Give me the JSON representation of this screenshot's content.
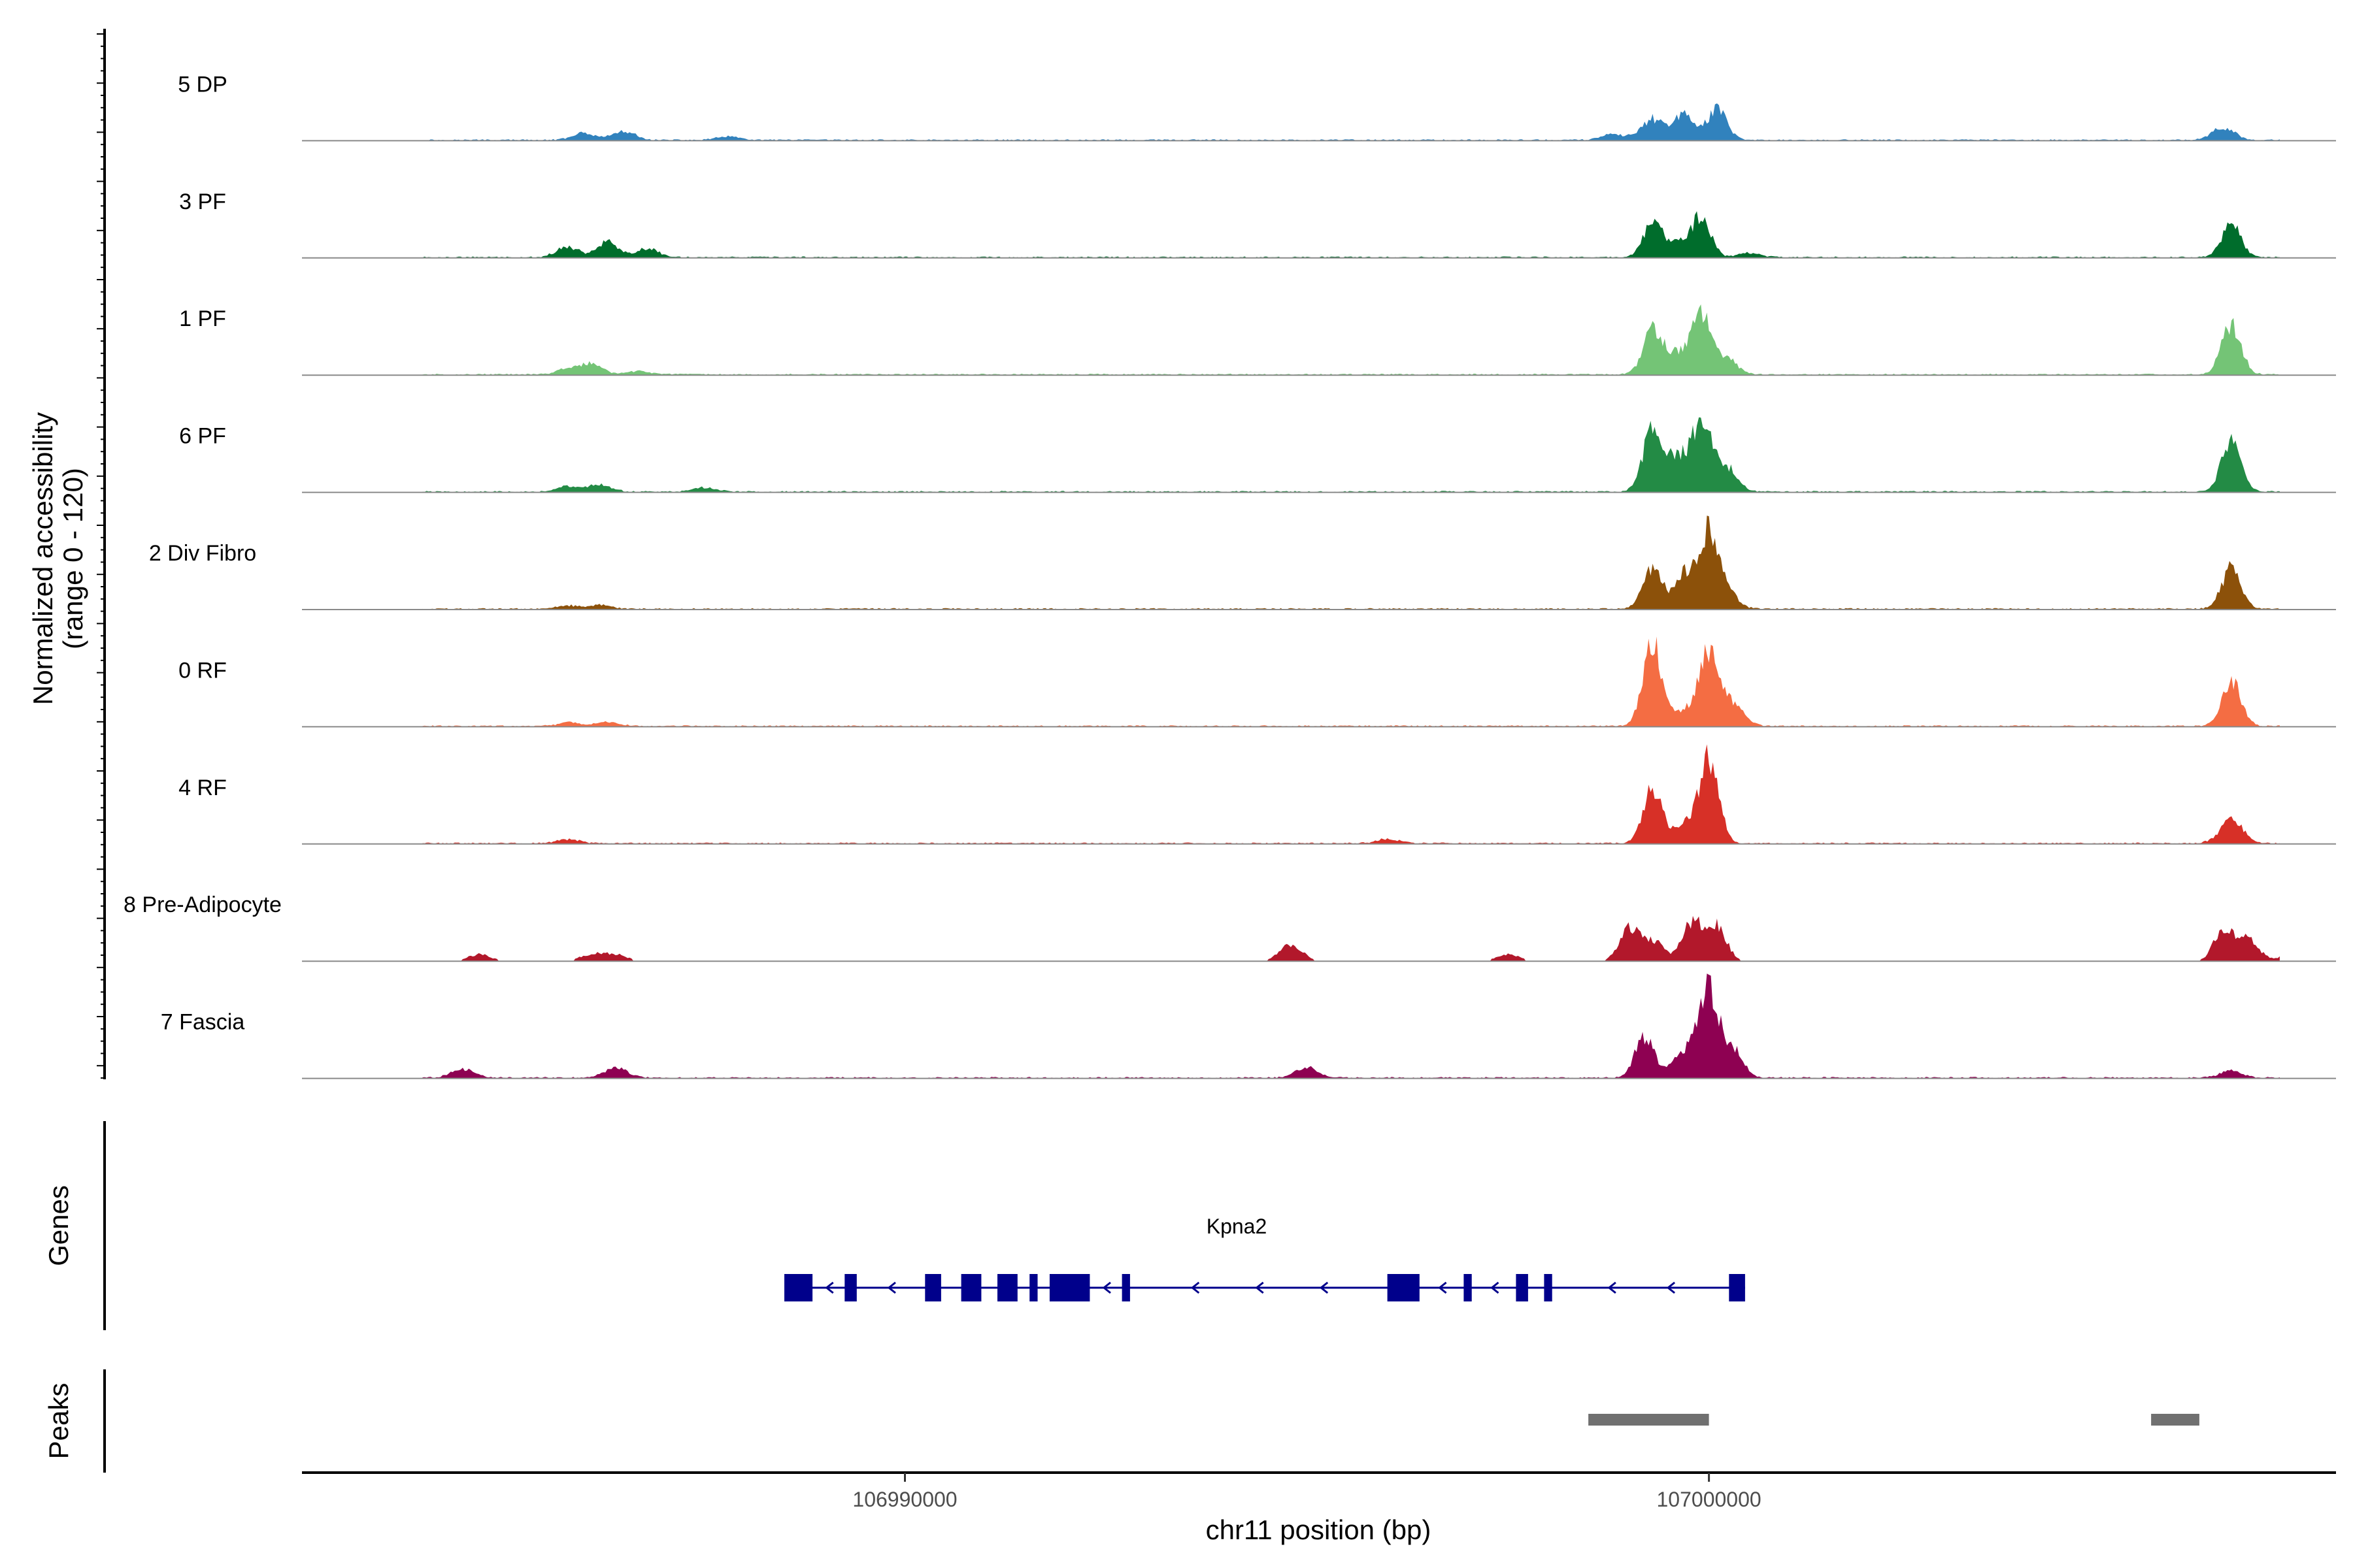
{
  "chart_data": {
    "type": "area",
    "title": "",
    "ylabel_line1": "Normalized accessibility",
    "ylabel_line2": "(range 0 - 120)",
    "yrange": [
      0,
      120
    ],
    "xlabel": "chr11 position (bp)",
    "xlim": [
      106982500,
      107007800
    ],
    "x_ticks": [
      106990000,
      107000000
    ],
    "x_tick_labels": [
      "106990000",
      "107000000"
    ],
    "series": [
      {
        "name": "5 DP",
        "color": "#3182bd",
        "peaks": [
          [
            106986000,
            8
          ],
          [
            106986500,
            10
          ],
          [
            106987800,
            4
          ],
          [
            106998800,
            7
          ],
          [
            106999300,
            25
          ],
          [
            106999700,
            32
          ],
          [
            107000100,
            36
          ],
          [
            107006400,
            15
          ]
        ]
      },
      {
        "name": "3 PF",
        "color": "#006d2c",
        "peaks": [
          [
            106985800,
            12
          ],
          [
            106986300,
            18
          ],
          [
            106986800,
            10
          ],
          [
            106999300,
            38
          ],
          [
            106999600,
            15
          ],
          [
            106999900,
            46
          ],
          [
            107000500,
            5
          ],
          [
            107006500,
            38
          ]
        ]
      },
      {
        "name": "1 PF",
        "color": "#74c476",
        "peaks": [
          [
            106985800,
            6
          ],
          [
            106986100,
            12
          ],
          [
            106986700,
            4
          ],
          [
            106999300,
            52
          ],
          [
            106999600,
            22
          ],
          [
            106999900,
            65
          ],
          [
            107000200,
            20
          ],
          [
            107006500,
            58
          ]
        ]
      },
      {
        "name": "6 PF",
        "color": "#238b45",
        "peaks": [
          [
            106985800,
            6
          ],
          [
            106986200,
            8
          ],
          [
            106987500,
            5
          ],
          [
            106999300,
            72
          ],
          [
            106999600,
            38
          ],
          [
            106999900,
            80
          ],
          [
            107000200,
            30
          ],
          [
            107006500,
            62
          ]
        ]
      },
      {
        "name": "2 Div Fibro",
        "color": "#8c510a",
        "peaks": [
          [
            106985800,
            4
          ],
          [
            106986200,
            5
          ],
          [
            106999300,
            48
          ],
          [
            106999700,
            42
          ],
          [
            107000000,
            85
          ],
          [
            107000200,
            20
          ],
          [
            107006500,
            48
          ]
        ]
      },
      {
        "name": "0 RF",
        "color": "#f46d43",
        "peaks": [
          [
            106985800,
            4
          ],
          [
            106986300,
            5
          ],
          [
            106999300,
            95
          ],
          [
            106999700,
            16
          ],
          [
            107000000,
            85
          ],
          [
            107000300,
            25
          ],
          [
            107006500,
            52
          ]
        ]
      },
      {
        "name": "4 RF",
        "color": "#d73027",
        "peaks": [
          [
            106985800,
            5
          ],
          [
            106996000,
            5
          ],
          [
            106999300,
            62
          ],
          [
            106999700,
            20
          ],
          [
            107000000,
            100
          ],
          [
            107006500,
            28
          ]
        ]
      },
      {
        "name": "8 Pre-Adipocyte",
        "color": "#b2182b",
        "peaks": [
          [
            106984700,
            8
          ],
          [
            106986100,
            8
          ],
          [
            106986400,
            8
          ],
          [
            106994800,
            20
          ],
          [
            106997500,
            8
          ],
          [
            106999000,
            38
          ],
          [
            106999300,
            25
          ],
          [
            106999800,
            48
          ],
          [
            107000100,
            40
          ],
          [
            107006400,
            35
          ],
          [
            107006700,
            25
          ],
          [
            107007300,
            12
          ]
        ]
      },
      {
        "name": "7 Fascia",
        "color": "#8e0152",
        "peaks": [
          [
            106984500,
            10
          ],
          [
            106986400,
            12
          ],
          [
            106995000,
            12
          ],
          [
            106999200,
            48
          ],
          [
            106999700,
            30
          ],
          [
            107000000,
            105
          ],
          [
            107000300,
            35
          ],
          [
            107006500,
            8
          ]
        ]
      }
    ],
    "genes": {
      "track_label": "Genes",
      "name": "Kpna2",
      "strand": "-",
      "start": 106988500,
      "end": 107000450,
      "color": "#00008b",
      "exons": [
        [
          106988500,
          106988850
        ],
        [
          106989250,
          106989400
        ],
        [
          106990250,
          106990450
        ],
        [
          106990700,
          106990950
        ],
        [
          106991150,
          106991400
        ],
        [
          106991550,
          106991650
        ],
        [
          106991800,
          106992300
        ],
        [
          106992700,
          106992800
        ],
        [
          106996000,
          106996400
        ],
        [
          106996950,
          106997050
        ],
        [
          106997600,
          106997750
        ],
        [
          106997950,
          106998050
        ],
        [
          107000250,
          107000450
        ]
      ]
    },
    "peaks_track": {
      "track_label": "Peaks",
      "color": "#707070",
      "regions": [
        [
          106998500,
          107000000
        ],
        [
          107005500,
          107006100
        ]
      ]
    }
  }
}
